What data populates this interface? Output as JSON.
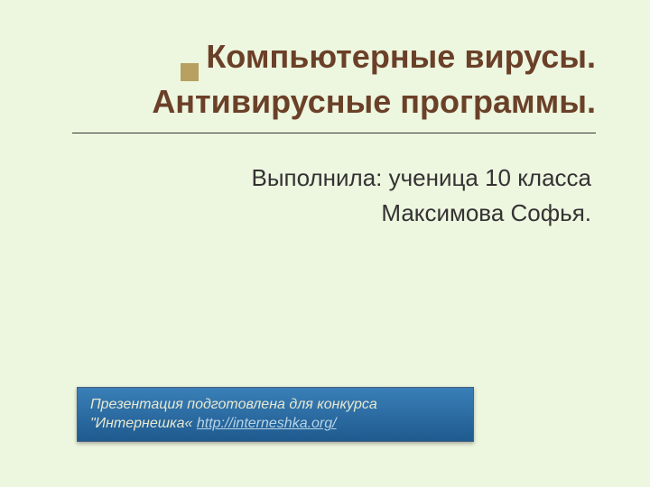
{
  "slide": {
    "background_color": "#edf6df",
    "title": {
      "text": "Компьютерные вирусы. Антивирусные программы.",
      "color": "#6b4028",
      "fontsize": 36,
      "fontweight": "bold",
      "align": "right",
      "marker_color": "#b8a060",
      "divider_color": "#333"
    },
    "subtitle": {
      "line1": "Выполнила: ученица 10 класса",
      "line2": "Максимова Софья.",
      "color": "#333",
      "fontsize": 26,
      "align": "right"
    },
    "footer": {
      "text_prefix": "Презентация подготовлена для конкурса \"Интернешка« ",
      "link_text": "http://interneshka.org/",
      "background_gradient_top": "#3a7fb8",
      "background_gradient_bottom": "#1e5a8e",
      "text_color": "#e8e8d0",
      "link_color": "#b8d4e8",
      "fontsize": 16,
      "fontstyle": "italic"
    }
  }
}
